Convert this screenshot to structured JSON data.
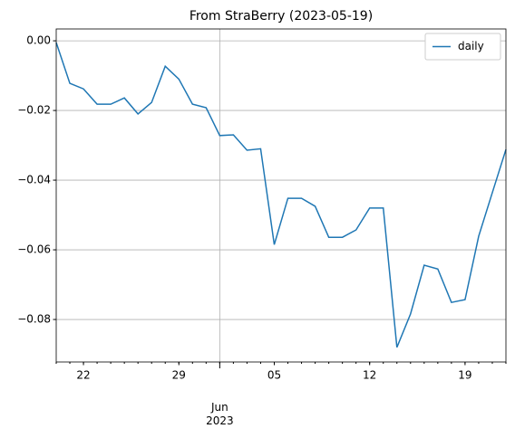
{
  "chart_data": {
    "type": "line",
    "title": "From StraBerry (2023-05-19)",
    "x": [
      "2023-05-20",
      "2023-05-21",
      "2023-05-22",
      "2023-05-23",
      "2023-05-24",
      "2023-05-25",
      "2023-05-26",
      "2023-05-27",
      "2023-05-28",
      "2023-05-29",
      "2023-05-30",
      "2023-05-31",
      "2023-06-01",
      "2023-06-02",
      "2023-06-03",
      "2023-06-04",
      "2023-06-05",
      "2023-06-06",
      "2023-06-07",
      "2023-06-08",
      "2023-06-09",
      "2023-06-10",
      "2023-06-11",
      "2023-06-12",
      "2023-06-13",
      "2023-06-14",
      "2023-06-15",
      "2023-06-16",
      "2023-06-17",
      "2023-06-18",
      "2023-06-19",
      "2023-06-20",
      "2023-06-21",
      "2023-06-22"
    ],
    "series": [
      {
        "name": "daily",
        "color": "#1f77b4",
        "values": [
          -0.0005,
          -0.0122,
          -0.0138,
          -0.0182,
          -0.0182,
          -0.0164,
          -0.021,
          -0.0177,
          -0.0073,
          -0.011,
          -0.0182,
          -0.0192,
          -0.0272,
          -0.027,
          -0.0314,
          -0.031,
          -0.0585,
          -0.0452,
          -0.0452,
          -0.0475,
          -0.0564,
          -0.0564,
          -0.0543,
          -0.048,
          -0.048,
          -0.088,
          -0.0784,
          -0.0644,
          -0.0655,
          -0.0751,
          -0.0743,
          -0.0561,
          -0.0436,
          -0.0312
        ]
      }
    ],
    "xlim": [
      "2023-05-20",
      "2023-06-22"
    ],
    "xticks": [
      {
        "value": "2023-05-22",
        "label": "22"
      },
      {
        "value": "2023-05-29",
        "label": "29"
      },
      {
        "value": "2023-06-05",
        "label": "05"
      },
      {
        "value": "2023-06-12",
        "label": "12"
      },
      {
        "value": "2023-06-19",
        "label": "19"
      }
    ],
    "xticks_major": [
      {
        "value": "2023-06-01",
        "label": "Jun\n2023"
      }
    ],
    "ylim": [
      -0.0922,
      0.0034
    ],
    "yticks": [
      {
        "value": 0,
        "label": "0.00"
      },
      {
        "value": -0.02,
        "label": "−0.02"
      },
      {
        "value": -0.04,
        "label": "−0.04"
      },
      {
        "value": -0.06,
        "label": "−0.06"
      },
      {
        "value": -0.08,
        "label": "−0.08"
      }
    ],
    "grid": true,
    "legend": "upper right"
  }
}
